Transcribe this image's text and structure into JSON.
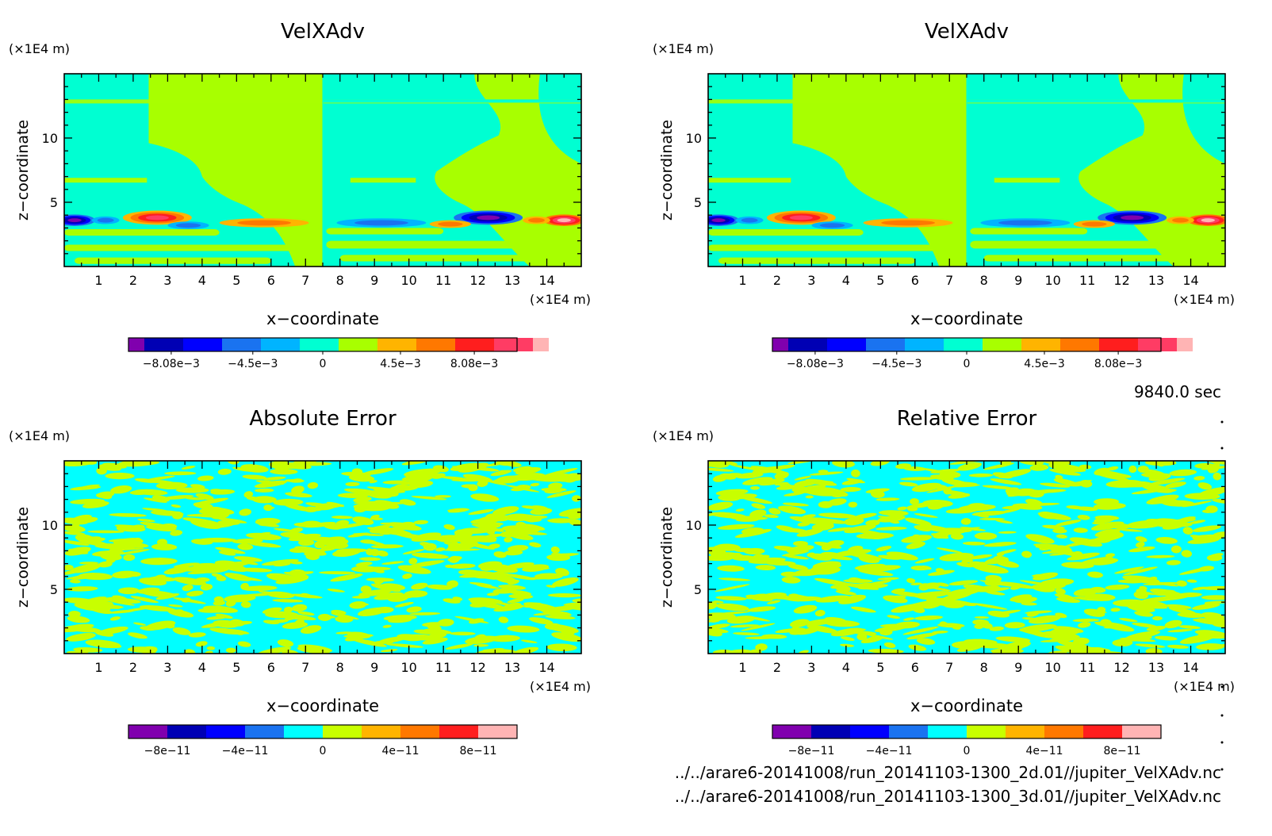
{
  "time_label": "9840.0 sec",
  "files": [
    "../../arare6-20141008/run_20141103-1300_2d.01//jupiter_VelXAdv.nc",
    "../../arare6-20141008/run_20141103-1300_3d.01//jupiter_VelXAdv.nc"
  ],
  "colors": {
    "levels": [
      "#8000ae",
      "#0000b4",
      "#0000ff",
      "#1a73f0",
      "#00b4ff",
      "#00ffd2",
      "#a8ff00",
      "#ffb400",
      "#ff7800",
      "#ff1e1e",
      "#ff3c64",
      "#ffb4b4"
    ],
    "error_levels": [
      "#8000ae",
      "#0000b4",
      "#0000ff",
      "#1a73f0",
      "#00ffff",
      "#c8ff00",
      "#ffb400",
      "#ff7800",
      "#ff1e1e",
      "#ffb4b4"
    ]
  },
  "chart_data": [
    {
      "type": "heatmap",
      "title": "VelXAdv",
      "xlabel": "x−coordinate",
      "ylabel": "z−coordinate",
      "x_scale_label": "(×1E4 m)",
      "y_scale_label": "(×1E4 m)",
      "xlim": [
        0,
        15
      ],
      "ylim": [
        0,
        15
      ],
      "x_ticks": [
        "1",
        "2",
        "3",
        "4",
        "5",
        "6",
        "7",
        "8",
        "9",
        "10",
        "11",
        "12",
        "13",
        "14"
      ],
      "y_ticks": [
        "5",
        "10"
      ],
      "colorbar_labels": [
        "−8.08e−3",
        "−4.5e−3",
        "0",
        "4.5e−3",
        "8.08e−3"
      ],
      "colorbar_range": [
        -0.00808,
        0.00808
      ]
    },
    {
      "type": "heatmap",
      "title": "VelXAdv",
      "xlabel": "x−coordinate",
      "ylabel": "z−coordinate",
      "x_scale_label": "(×1E4 m)",
      "y_scale_label": "(×1E4 m)",
      "xlim": [
        0,
        15
      ],
      "ylim": [
        0,
        15
      ],
      "x_ticks": [
        "1",
        "2",
        "3",
        "4",
        "5",
        "6",
        "7",
        "8",
        "9",
        "10",
        "11",
        "12",
        "13",
        "14"
      ],
      "y_ticks": [
        "5",
        "10"
      ],
      "colorbar_labels": [
        "−8.08e−3",
        "−4.5e−3",
        "0",
        "4.5e−3",
        "8.08e−3"
      ],
      "colorbar_range": [
        -0.00808,
        0.00808
      ]
    },
    {
      "type": "heatmap",
      "title": "Absolute Error",
      "xlabel": "x−coordinate",
      "ylabel": "z−coordinate",
      "x_scale_label": "(×1E4 m)",
      "y_scale_label": "(×1E4 m)",
      "xlim": [
        0,
        15
      ],
      "ylim": [
        0,
        15
      ],
      "x_ticks": [
        "1",
        "2",
        "3",
        "4",
        "5",
        "6",
        "7",
        "8",
        "9",
        "10",
        "11",
        "12",
        "13",
        "14"
      ],
      "y_ticks": [
        "5",
        "10"
      ],
      "colorbar_labels": [
        "−8e−11",
        "−4e−11",
        "0",
        "4e−11",
        "8e−11"
      ],
      "colorbar_range": [
        -1e-10,
        1e-10
      ]
    },
    {
      "type": "heatmap",
      "title": "Relative Error",
      "xlabel": "x−coordinate",
      "ylabel": "z−coordinate",
      "x_scale_label": "(×1E4 m)",
      "y_scale_label": "(×1E4 m)",
      "xlim": [
        0,
        15
      ],
      "ylim": [
        0,
        15
      ],
      "x_ticks": [
        "1",
        "2",
        "3",
        "4",
        "5",
        "6",
        "7",
        "8",
        "9",
        "10",
        "11",
        "12",
        "13",
        "14"
      ],
      "y_ticks": [
        "5",
        "10"
      ],
      "colorbar_labels": [
        "−8e−11",
        "−4e−11",
        "0",
        "4e−11",
        "8e−11"
      ],
      "colorbar_range": [
        -1e-10,
        1e-10
      ]
    }
  ]
}
